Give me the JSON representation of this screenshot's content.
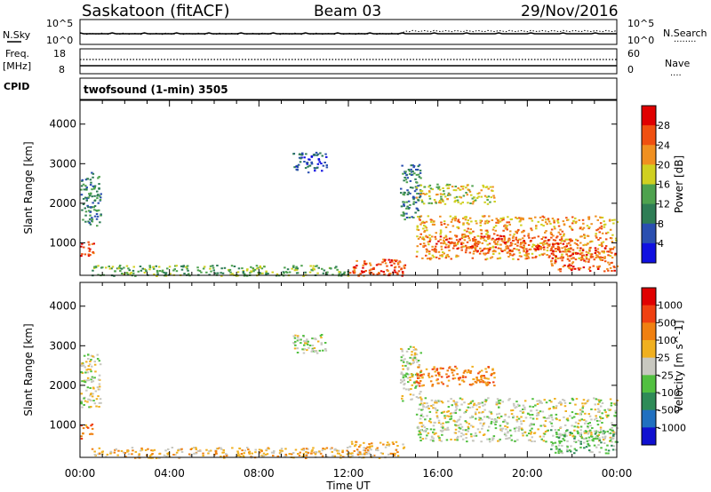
{
  "header": {
    "station": "Saskatoon (fitACF)",
    "beam": "Beam 03",
    "date": "29/Nov/2016"
  },
  "status_panel": {
    "left_labels": {
      "nsky": "N.Sky",
      "freq": "Freq.",
      "mhz": "[MHz]",
      "cpid": "CPID"
    },
    "right_labels": {
      "nsearch": "N.Search",
      "nsearch_dots": "········",
      "nave": "Nave",
      "nave_dots": "····"
    },
    "noise_axis": {
      "top": "10^5",
      "bottom": "10^0"
    },
    "freq_axis": {
      "top": "18",
      "bottom": "8"
    },
    "nave_axis": {
      "top": "60",
      "bottom": "0"
    },
    "cpid_text": "twofsound (1-min) 3505"
  },
  "x_axis": {
    "ticks": [
      "00:00",
      "04:00",
      "08:00",
      "12:00",
      "16:00",
      "20:00",
      "00:00"
    ],
    "title": "Time UT"
  },
  "chart_data": [
    {
      "type": "heatmap",
      "panel": "power",
      "ylabel": "Slant Range [km]",
      "y_ticks": [
        "1000",
        "2000",
        "3000",
        "4000"
      ],
      "ylim": [
        180,
        4600
      ],
      "xlim_hours": [
        0,
        24
      ],
      "colorbar": {
        "label": "Power [dB]",
        "ticks": [
          "4",
          "8",
          "12",
          "16",
          "20",
          "24",
          "28"
        ],
        "colors": [
          "#1010e0",
          "#2a4fb0",
          "#2e7d55",
          "#4ea24e",
          "#d0d020",
          "#f09020",
          "#f05010",
          "#e00000"
        ]
      },
      "regions": [
        {
          "t0": 0.0,
          "t1": 0.9,
          "r0": 1450,
          "r1": 2800,
          "level": 2
        },
        {
          "t0": 0.0,
          "t1": 0.6,
          "r0": 650,
          "r1": 1050,
          "level": 6
        },
        {
          "t0": 0.5,
          "t1": 12.0,
          "r0": 180,
          "r1": 450,
          "level": 3
        },
        {
          "t0": 9.5,
          "t1": 11.0,
          "r0": 2800,
          "r1": 3300,
          "level": 1
        },
        {
          "t0": 12.0,
          "t1": 14.5,
          "r0": 180,
          "r1": 600,
          "level": 6
        },
        {
          "t0": 14.3,
          "t1": 15.2,
          "r0": 1600,
          "r1": 3000,
          "level": 2
        },
        {
          "t0": 15.0,
          "t1": 18.5,
          "r0": 2000,
          "r1": 2500,
          "level": 4
        },
        {
          "t0": 15.0,
          "t1": 24.0,
          "r0": 600,
          "r1": 1700,
          "level": 5
        },
        {
          "t0": 15.5,
          "t1": 22.0,
          "r0": 800,
          "r1": 1200,
          "level": 6
        },
        {
          "t0": 21.0,
          "t1": 24.0,
          "r0": 300,
          "r1": 900,
          "level": 6
        }
      ]
    },
    {
      "type": "heatmap",
      "panel": "velocity",
      "ylabel": "Slant Range [km]",
      "y_ticks": [
        "1000",
        "2000",
        "3000",
        "4000"
      ],
      "ylim": [
        180,
        4600
      ],
      "xlim_hours": [
        0,
        24
      ],
      "colorbar": {
        "label": "Velocity [m s^-1]",
        "ticks": [
          "1000",
          "500",
          "100",
          "25",
          "-25",
          "-100",
          "-500",
          "-1000"
        ],
        "colors": [
          "#1010d0",
          "#2070c0",
          "#2e8b57",
          "#52c040",
          "#c8c8c0",
          "#f0b020",
          "#f08010",
          "#f04010",
          "#e00000"
        ]
      },
      "regions": [
        {
          "t0": 0.0,
          "t1": 0.9,
          "r0": 1450,
          "r1": 2800,
          "level": 4
        },
        {
          "t0": 0.0,
          "t1": 0.6,
          "r0": 650,
          "r1": 1050,
          "level": 6
        },
        {
          "t0": 0.5,
          "t1": 12.0,
          "r0": 180,
          "r1": 450,
          "level": 5
        },
        {
          "t0": 9.5,
          "t1": 11.0,
          "r0": 2800,
          "r1": 3300,
          "level": 4
        },
        {
          "t0": 12.0,
          "t1": 14.5,
          "r0": 180,
          "r1": 600,
          "level": 5
        },
        {
          "t0": 14.3,
          "t1": 15.2,
          "r0": 1600,
          "r1": 3000,
          "level": 4
        },
        {
          "t0": 15.0,
          "t1": 18.5,
          "r0": 2000,
          "r1": 2500,
          "level": 6
        },
        {
          "t0": 15.0,
          "t1": 24.0,
          "r0": 600,
          "r1": 1700,
          "level": 4
        },
        {
          "t0": 21.0,
          "t1": 24.0,
          "r0": 300,
          "r1": 900,
          "level": 3
        }
      ]
    }
  ]
}
